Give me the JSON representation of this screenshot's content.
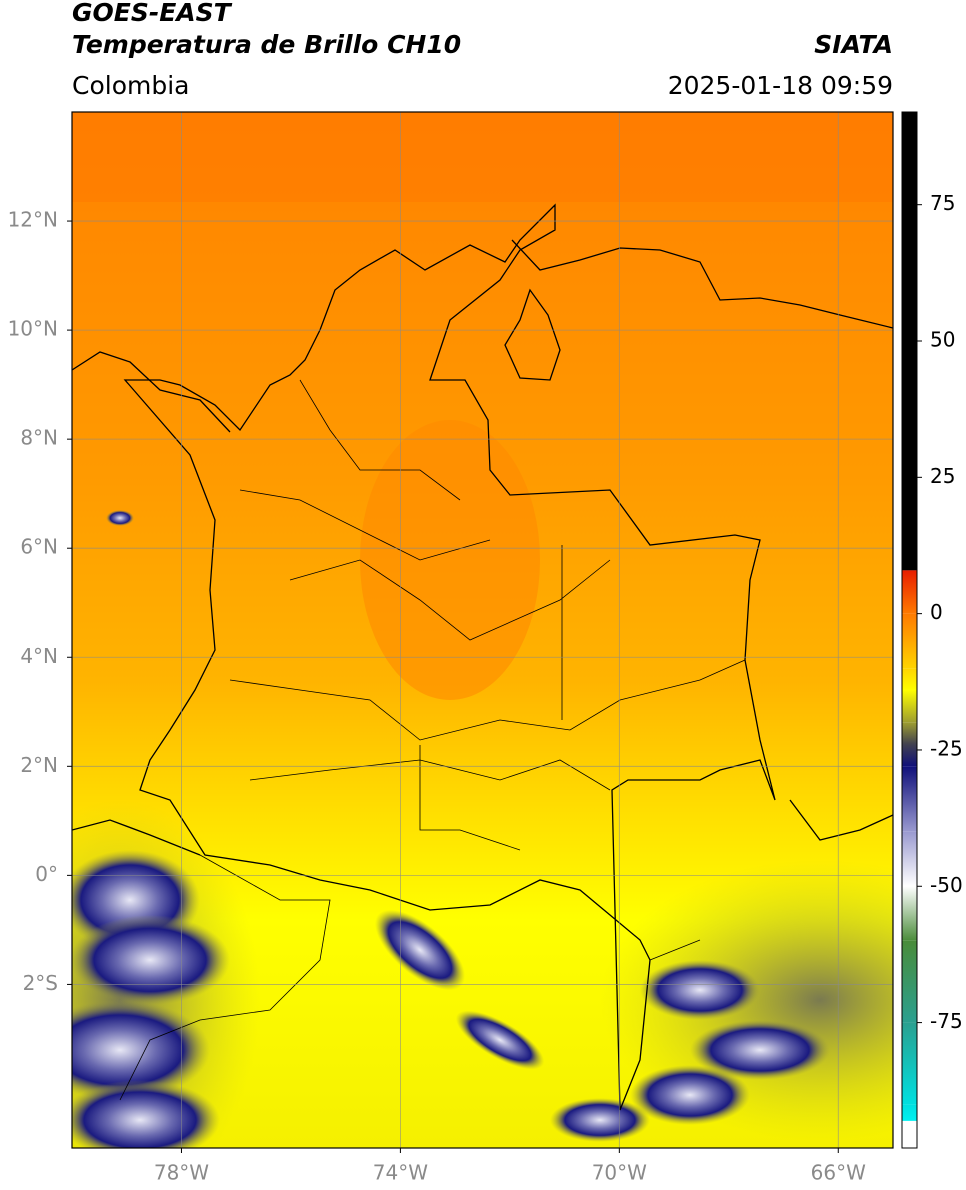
{
  "header": {
    "satellite": "GOES-EAST",
    "product": "Temperatura de Brillo CH10",
    "source": "SIATA",
    "region": "Colombia",
    "datetime": "2025-01-18 09:59"
  },
  "map": {
    "xlim": [
      -80,
      -65
    ],
    "ylim": [
      -5,
      14
    ],
    "xticks": [
      {
        "value": -78,
        "label": "78°W"
      },
      {
        "value": -74,
        "label": "74°W"
      },
      {
        "value": -70,
        "label": "70°W"
      },
      {
        "value": -66,
        "label": "66°W"
      }
    ],
    "yticks": [
      {
        "value": 12,
        "label": "12°N"
      },
      {
        "value": 10,
        "label": "10°N"
      },
      {
        "value": 8,
        "label": "8°N"
      },
      {
        "value": 6,
        "label": "6°N"
      },
      {
        "value": 4,
        "label": "4°N"
      },
      {
        "value": 2,
        "label": "2°N"
      },
      {
        "value": 0,
        "label": "0°"
      },
      {
        "value": -2,
        "label": "2°S"
      }
    ],
    "grid": true
  },
  "colorbar": {
    "lim": [
      -98,
      92
    ],
    "ticks": [
      75,
      50,
      25,
      0,
      -25,
      -50,
      -75
    ],
    "stops": [
      {
        "value": 92,
        "color": "#000000"
      },
      {
        "value": 8,
        "color": "#000000"
      },
      {
        "value": 7.9,
        "color": "#e81e00"
      },
      {
        "value": 0,
        "color": "#ff7a00"
      },
      {
        "value": -10,
        "color": "#ffd400"
      },
      {
        "value": -14,
        "color": "#ffff00"
      },
      {
        "value": -20,
        "color": "#9c9c30"
      },
      {
        "value": -24,
        "color": "#404050"
      },
      {
        "value": -28,
        "color": "#10107a"
      },
      {
        "value": -40,
        "color": "#9a9ad0"
      },
      {
        "value": -50,
        "color": "#ffffff"
      },
      {
        "value": -60,
        "color": "#4a8c3a"
      },
      {
        "value": -75,
        "color": "#2aa090"
      },
      {
        "value": -90,
        "color": "#00e0e0"
      },
      {
        "value": -93,
        "color": "#00f0f0"
      },
      {
        "value": -93.1,
        "color": "#ffffff"
      },
      {
        "value": -98,
        "color": "#ffffff"
      }
    ]
  }
}
